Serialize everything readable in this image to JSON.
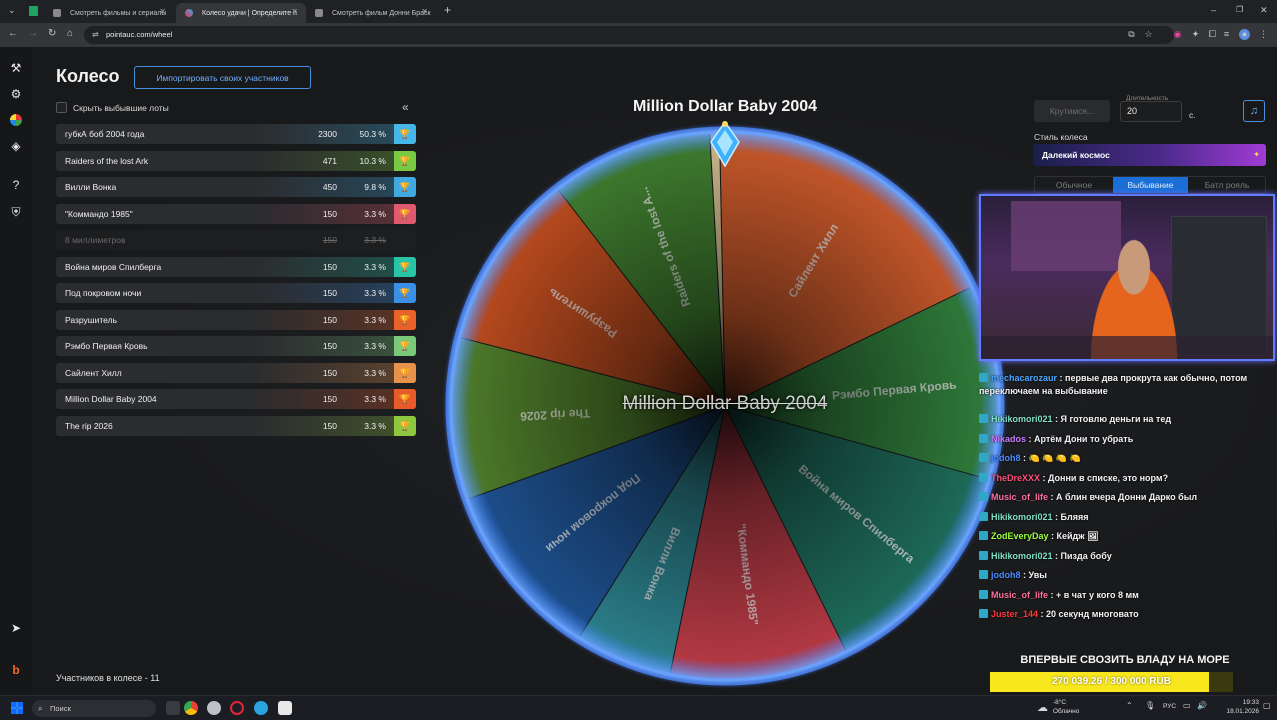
{
  "browser": {
    "tabs": [
      {
        "title": "Смотреть фильмы и сериалы",
        "active": false
      },
      {
        "title": "Колесо удачи | Определите п",
        "active": true
      },
      {
        "title": "Смотреть фильм Донни Браск",
        "active": false
      }
    ],
    "url": "pointauc.com/wheel"
  },
  "header": {
    "title": "Колесо",
    "import_label": "Импортировать своих участников"
  },
  "list": {
    "hide_label": "Скрыть выбывшие лоты",
    "lots": [
      {
        "name": "губкА боб 2004 года",
        "amount": "2300",
        "percent": "50.3 %",
        "color": "#46b7e8",
        "dropped": false
      },
      {
        "name": "Raiders of the lost Ark",
        "amount": "471",
        "percent": "10.3 %",
        "color": "#7ac943",
        "dropped": false
      },
      {
        "name": "Вилли Вонка",
        "amount": "450",
        "percent": "9.8 %",
        "color": "#3fa9e0",
        "dropped": false
      },
      {
        "name": "\"Коммандо 1985\"",
        "amount": "150",
        "percent": "3.3 %",
        "color": "#e05a6e",
        "dropped": false
      },
      {
        "name": "8 миллиметров",
        "amount": "150",
        "percent": "3.3 %",
        "color": "#2a2a2a",
        "dropped": true
      },
      {
        "name": "Война миров Спилберга",
        "amount": "150",
        "percent": "3.3 %",
        "color": "#27c4a6",
        "dropped": false
      },
      {
        "name": "Под покровом ночи",
        "amount": "150",
        "percent": "3.3 %",
        "color": "#3b8fe6",
        "dropped": false
      },
      {
        "name": "Разрушитель",
        "amount": "150",
        "percent": "3.3 %",
        "color": "#e8622a",
        "dropped": false
      },
      {
        "name": "Рэмбо Первая Кровь",
        "amount": "150",
        "percent": "3.3 %",
        "color": "#7ac97a",
        "dropped": false
      },
      {
        "name": "Сайлент Хилл",
        "amount": "150",
        "percent": "3.3 %",
        "color": "#e8914a",
        "dropped": false
      },
      {
        "name": "Million Dollar Baby 2004",
        "amount": "150",
        "percent": "3.3 %",
        "color": "#e85a2a",
        "dropped": false
      },
      {
        "name": "The rip 2026",
        "amount": "150",
        "percent": "3.3 %",
        "color": "#8ec63f",
        "dropped": false
      }
    ],
    "participants": "Участников в колесе - 11"
  },
  "wheel": {
    "title": "Million Dollar Baby 2004",
    "winner": "Million Dollar Baby 2004",
    "segments": [
      {
        "label": "Сайлент Хилл",
        "color": "#c4572a",
        "share": 0.19
      },
      {
        "label": "Рэмбо Первая Кровь",
        "color": "#2f7a3a",
        "share": 0.12
      },
      {
        "label": "Война миров Спилберга",
        "color": "#1e6b5a",
        "share": 0.14
      },
      {
        "label": "\"Коммандо 1985\"",
        "color": "#b63a45",
        "share": 0.11
      },
      {
        "label": "Вилли Вонка",
        "color": "#2b7f8a",
        "share": 0.06
      },
      {
        "label": "Под покровом ночи",
        "color": "#1d4f8c",
        "share": 0.11
      },
      {
        "label": "The rip 2026",
        "color": "#4d7a2a",
        "share": 0.1
      },
      {
        "label": "Разрушитель",
        "color": "#b84a1e",
        "share": 0.11
      },
      {
        "label": "Raiders of the lost A...",
        "color": "#3e7a2e",
        "share": 0.1
      },
      {
        "label": "",
        "color": "#c9b58a",
        "share": 0.006
      }
    ]
  },
  "controls": {
    "spin_label": "Крутимся...",
    "duration_label": "Длительность",
    "duration_value": "20",
    "duration_unit": "с.",
    "style_label": "Стиль колеса",
    "style_value": "Далекий космос",
    "modes": [
      "Обычное",
      "Выбывание",
      "Батл рояль"
    ],
    "active_mode": "Выбывание"
  },
  "chat": [
    {
      "user": "mechacarozaur",
      "color": "#4aa8ff",
      "text": " : первые два прокрута как обычно, потом переключаем на выбывание"
    },
    {
      "user": "Hikikomori021",
      "color": "#7fe0c8",
      "text": " : Я готовлю деньги на тед"
    },
    {
      "user": "Nikados",
      "color": "#c77dff",
      "text": " : Артём Дони то убрать"
    },
    {
      "user": "jodoh8",
      "color": "#4a8cff",
      "text": " : 🍋 🍋 🍋 🍋"
    },
    {
      "user": "TheDreXXX",
      "color": "#ff4f7a",
      "text": " : Донни в списке, это норм?"
    },
    {
      "user": "Music_of_life",
      "color": "#ff6fa0",
      "text": " : А блин вчера Донни Дарко был"
    },
    {
      "user": "Hikikomori021",
      "color": "#7fe0c8",
      "text": " : Бляяя"
    },
    {
      "user": "ZodEveryDay",
      "color": "#9cff3a",
      "text": " : Кейдж 🖼"
    },
    {
      "user": "Hikikomori021",
      "color": "#7fe0c8",
      "text": " : Пизда бобу"
    },
    {
      "user": "jodoh8",
      "color": "#4a8cff",
      "text": " : Увы"
    },
    {
      "user": "Music_of_life",
      "color": "#ff6fa0",
      "text": " : + в чат у кого 8 мм"
    },
    {
      "user": "Juster_144",
      "color": "#ff3a3a",
      "text": " : 20 секунд многовато"
    }
  ],
  "goal": {
    "title": "ВПЕРВЫЕ СВОЗИТЬ ВЛАДУ НА МОРЕ",
    "text": "270 039.26 / 300 000 RUB",
    "progress": 0.9
  },
  "taskbar": {
    "search": "Поиск",
    "weather": "-8°C",
    "weather_desc": "Облачно",
    "lang": "РУС",
    "time": "19:33",
    "date": "18.01.2026"
  }
}
